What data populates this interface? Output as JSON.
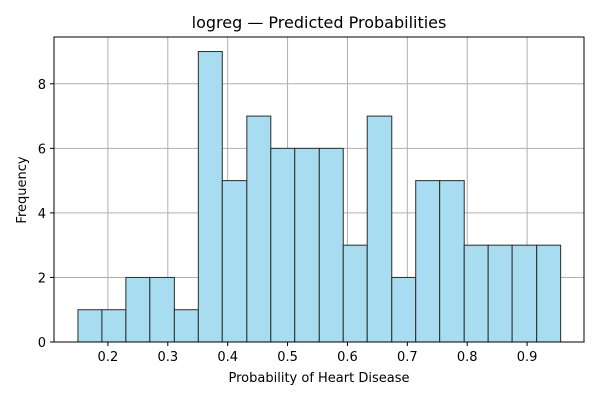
{
  "chart_data": {
    "type": "bar",
    "title": "logreg — Predicted Probabilities",
    "xlabel": "Probability of Heart Disease",
    "ylabel": "Frequency",
    "xlim": [
      0.11,
      0.995
    ],
    "ylim": [
      0,
      9.45
    ],
    "grid": true,
    "bar_color": "#a8dcf0",
    "edge_color": "#2b2b2b",
    "grid_color": "#b0b0b0",
    "x_ticks": [
      0.2,
      0.3,
      0.4,
      0.5,
      0.6,
      0.7,
      0.8,
      0.9
    ],
    "x_tick_labels": [
      "0.2",
      "0.3",
      "0.4",
      "0.5",
      "0.6",
      "0.7",
      "0.8",
      "0.9"
    ],
    "y_ticks": [
      0,
      2,
      4,
      6,
      8
    ],
    "y_tick_labels": [
      "0",
      "2",
      "4",
      "6",
      "8"
    ],
    "bins": [
      {
        "start": 0.15,
        "end": 0.19,
        "count": 1
      },
      {
        "start": 0.19,
        "end": 0.23,
        "count": 1
      },
      {
        "start": 0.23,
        "end": 0.27,
        "count": 2
      },
      {
        "start": 0.27,
        "end": 0.311,
        "count": 2
      },
      {
        "start": 0.311,
        "end": 0.351,
        "count": 1
      },
      {
        "start": 0.351,
        "end": 0.391,
        "count": 9
      },
      {
        "start": 0.391,
        "end": 0.432,
        "count": 5
      },
      {
        "start": 0.432,
        "end": 0.472,
        "count": 7
      },
      {
        "start": 0.472,
        "end": 0.512,
        "count": 6
      },
      {
        "start": 0.512,
        "end": 0.553,
        "count": 6
      },
      {
        "start": 0.553,
        "end": 0.593,
        "count": 6
      },
      {
        "start": 0.593,
        "end": 0.633,
        "count": 3
      },
      {
        "start": 0.633,
        "end": 0.674,
        "count": 7
      },
      {
        "start": 0.674,
        "end": 0.714,
        "count": 2
      },
      {
        "start": 0.714,
        "end": 0.754,
        "count": 5
      },
      {
        "start": 0.754,
        "end": 0.795,
        "count": 5
      },
      {
        "start": 0.795,
        "end": 0.835,
        "count": 3
      },
      {
        "start": 0.835,
        "end": 0.875,
        "count": 3
      },
      {
        "start": 0.875,
        "end": 0.916,
        "count": 3
      },
      {
        "start": 0.916,
        "end": 0.956,
        "count": 3
      }
    ]
  }
}
